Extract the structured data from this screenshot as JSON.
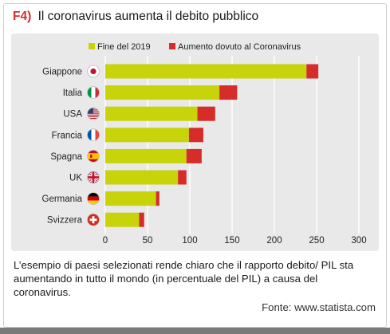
{
  "title_code": "F4)",
  "title_text": "Il coronavirus aumenta il debito pubblico",
  "caption": "L’esempio di paesi selezionati rende chiaro che il rapporto debito/ PIL sta aumentando in tutto il mondo (in percentuale del PIL) a causa del coronavirus.",
  "source": "Fonte: www.statista.com",
  "colors": {
    "base": "#c8d30a",
    "increase": "#d62d2a",
    "grid": "#ffffff",
    "panel": "#e9e9e9"
  },
  "chart_data": {
    "type": "bar",
    "orientation": "horizontal",
    "stacked": true,
    "categories": [
      "Giappone",
      "Italia",
      "USA",
      "Francia",
      "Spagna",
      "UK",
      "Germania",
      "Svizzera"
    ],
    "flags": [
      "japan-flag",
      "italy-flag",
      "usa-flag",
      "france-flag",
      "spain-flag",
      "uk-flag",
      "germany-flag",
      "switzerland-flag"
    ],
    "series": [
      {
        "name": "Fine del 2019",
        "values": [
          238,
          135,
          109,
          99,
          96,
          86,
          60,
          40
        ]
      },
      {
        "name": "Aumento dovuto al Coronavirus",
        "values": [
          14,
          21,
          21,
          17,
          18,
          10,
          4,
          6
        ]
      }
    ],
    "xticks": [
      0,
      50,
      100,
      150,
      200,
      250,
      300
    ],
    "xlim": [
      0,
      300
    ],
    "grid": true,
    "legend": "top"
  }
}
